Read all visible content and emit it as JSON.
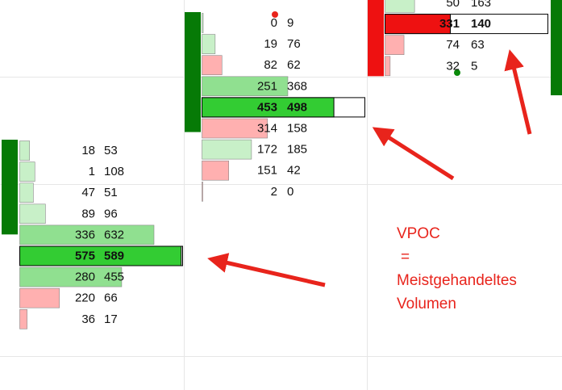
{
  "columns": [
    {
      "side_color": "#067a06",
      "rows": [
        {
          "bid": 18,
          "ask": 53,
          "color": "#c8f0c8"
        },
        {
          "bid": 1,
          "ask": 108,
          "color": "#c8f0c8"
        },
        {
          "bid": 47,
          "ask": 51,
          "color": "#c8f0c8"
        },
        {
          "bid": 89,
          "ask": 96,
          "color": "#c8f0c8"
        },
        {
          "bid": 336,
          "ask": 632,
          "color": "#90e090"
        },
        {
          "bid": 575,
          "ask": 589,
          "color": "#33cc33",
          "highlight": true
        },
        {
          "bid": 280,
          "ask": 455,
          "color": "#90e090"
        },
        {
          "bid": 220,
          "ask": 66,
          "color": "#ffb0b0"
        },
        {
          "bid": 36,
          "ask": 17,
          "color": "#ffb0b0"
        }
      ]
    },
    {
      "side_color": "#067a06",
      "rows": [
        {
          "bid": 0,
          "ask": 9,
          "color": "#c8f0c8"
        },
        {
          "bid": 19,
          "ask": 76,
          "color": "#c8f0c8"
        },
        {
          "bid": 82,
          "ask": 62,
          "color": "#ffb0b0"
        },
        {
          "bid": 251,
          "ask": 368,
          "color": "#90e090"
        },
        {
          "bid": 453,
          "ask": 498,
          "color": "#33cc33",
          "highlight": true
        },
        {
          "bid": 314,
          "ask": 158,
          "color": "#ffb0b0"
        },
        {
          "bid": 172,
          "ask": 185,
          "color": "#c8f0c8"
        },
        {
          "bid": 151,
          "ask": 42,
          "color": "#ffb0b0"
        },
        {
          "bid": 2,
          "ask": 0,
          "color": "#ffb0b0"
        }
      ]
    },
    {
      "side_color": "#ee1111",
      "rows": [
        {
          "bid": 50,
          "ask": 163,
          "color": "#c8f0c8"
        },
        {
          "bid": 331,
          "ask": 140,
          "color": "#ee1111",
          "highlight": true
        },
        {
          "bid": 74,
          "ask": 63,
          "color": "#ffb0b0"
        },
        {
          "bid": 32,
          "ask": 5,
          "color": "#ffb0b0"
        }
      ]
    }
  ],
  "annotation": {
    "lines": [
      "VPOC",
      "=",
      "Meistgehandeltes",
      "Volumen"
    ]
  }
}
